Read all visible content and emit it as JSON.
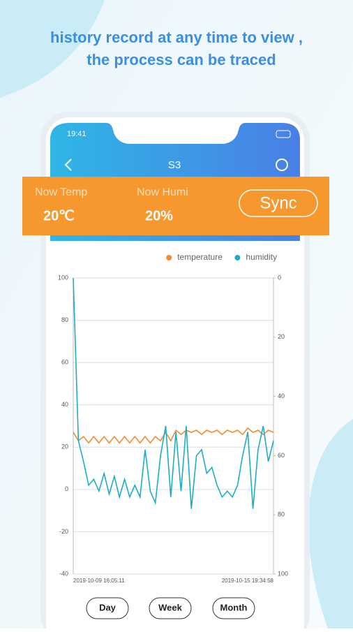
{
  "header": {
    "title_lines": [
      "history record at any time to view ,",
      "the process can be traced"
    ]
  },
  "status_bar": {
    "time": "19:41"
  },
  "nav": {
    "title": "S3"
  },
  "panel": {
    "temp_label": "Now Temp",
    "temp_value": "20℃",
    "humi_label": "Now Humi",
    "humi_value": "20%",
    "sync": "Sync"
  },
  "chart_data": {
    "type": "line",
    "categories": [
      "2019-10-09 16:05:11",
      null,
      null,
      null,
      null,
      null,
      null,
      null,
      null,
      null,
      null,
      null,
      null,
      null,
      null,
      null,
      null,
      null,
      null,
      null,
      null,
      null,
      null,
      null,
      null,
      null,
      null,
      null,
      null,
      null,
      null,
      null,
      null,
      null,
      null,
      null,
      null,
      null,
      null,
      "2019-10-15 19:34:58"
    ],
    "series": [
      {
        "name": "temperature",
        "color": "#f58a2e",
        "values": [
          27,
          23,
          25,
          22,
          25,
          22,
          25,
          22,
          25,
          22,
          25,
          22,
          25,
          22,
          25,
          22,
          25,
          23,
          27,
          23,
          28,
          26,
          28,
          27,
          28,
          26,
          28,
          27,
          28,
          26,
          28,
          27,
          28,
          26,
          29,
          27,
          28,
          26,
          28,
          27
        ]
      },
      {
        "name": "humidity",
        "color": "#1aaec8",
        "axis": "y2",
        "values": [
          0,
          55,
          62,
          70,
          68,
          72,
          66,
          73,
          67,
          74,
          68,
          74,
          70,
          74,
          58,
          72,
          76,
          60,
          50,
          74,
          52,
          72,
          50,
          78,
          60,
          58,
          66,
          64,
          70,
          74,
          72,
          74,
          70,
          60,
          52,
          78,
          58,
          50,
          62,
          55
        ]
      }
    ],
    "ylim": [
      -40,
      100
    ],
    "yticks": [
      -40,
      -20,
      0,
      20,
      40,
      60,
      80,
      100
    ],
    "y2lim": [
      100,
      0
    ],
    "y2ticks": [
      0,
      20,
      40,
      60,
      80,
      100
    ],
    "grid": true,
    "legend": "top-right"
  },
  "range_buttons": [
    "Day",
    "Week",
    "Month"
  ]
}
